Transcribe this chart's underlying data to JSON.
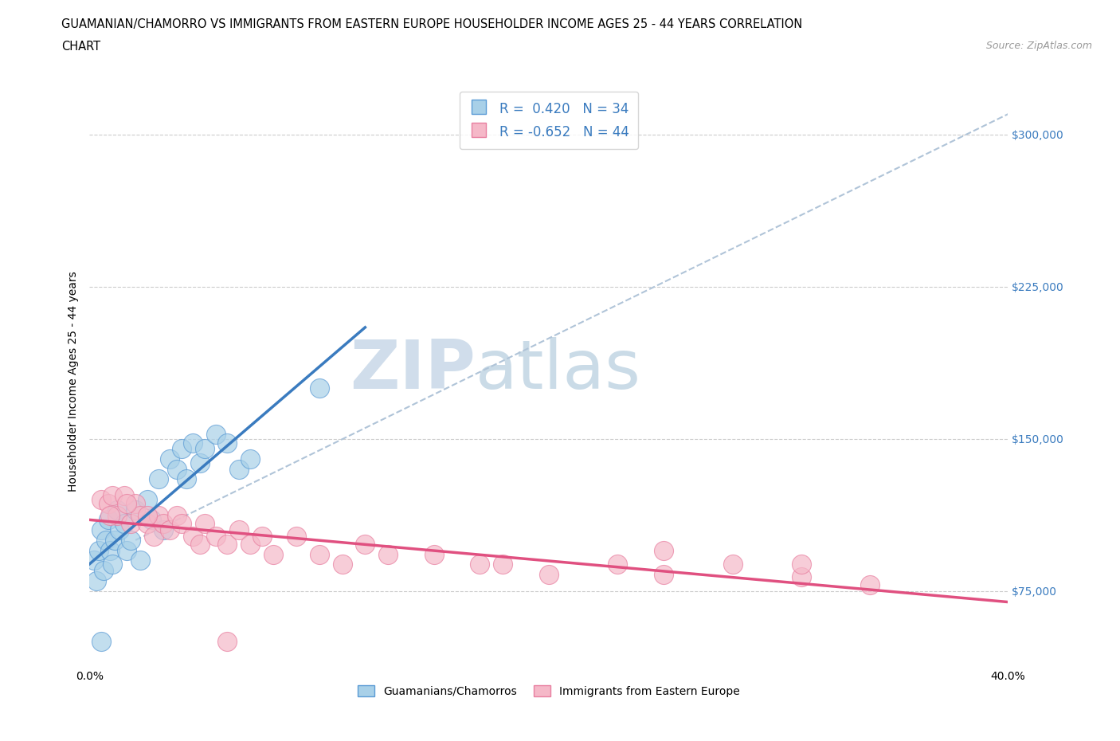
{
  "title_line1": "GUAMANIAN/CHAMORRO VS IMMIGRANTS FROM EASTERN EUROPE HOUSEHOLDER INCOME AGES 25 - 44 YEARS CORRELATION",
  "title_line2": "CHART",
  "source_text": "Source: ZipAtlas.com",
  "ylabel": "Householder Income Ages 25 - 44 years",
  "xlim": [
    0.0,
    0.4
  ],
  "ylim": [
    37500,
    318750
  ],
  "xticks": [
    0.0,
    0.05,
    0.1,
    0.15,
    0.2,
    0.25,
    0.3,
    0.35,
    0.4
  ],
  "xtick_labels": [
    "0.0%",
    "",
    "",
    "",
    "",
    "",
    "",
    "",
    "40.0%"
  ],
  "yticks": [
    75000,
    150000,
    225000,
    300000
  ],
  "ytick_labels": [
    "$75,000",
    "$150,000",
    "$225,000",
    "$300,000"
  ],
  "watermark_zip": "ZIP",
  "watermark_atlas": "atlas",
  "color_blue": "#a8d0e8",
  "color_blue_edge": "#5b9bd5",
  "color_blue_line": "#3a7bbf",
  "color_pink": "#f5b8c8",
  "color_pink_edge": "#e87fa0",
  "color_pink_line": "#e05080",
  "color_dashed": "#b0c4d8",
  "guam_x": [
    0.002,
    0.003,
    0.004,
    0.005,
    0.006,
    0.007,
    0.008,
    0.009,
    0.01,
    0.011,
    0.012,
    0.013,
    0.015,
    0.016,
    0.018,
    0.02,
    0.022,
    0.025,
    0.027,
    0.03,
    0.032,
    0.035,
    0.038,
    0.04,
    0.042,
    0.045,
    0.048,
    0.05,
    0.055,
    0.06,
    0.065,
    0.07,
    0.1,
    0.005
  ],
  "guam_y": [
    90000,
    80000,
    95000,
    105000,
    85000,
    100000,
    110000,
    95000,
    88000,
    100000,
    115000,
    105000,
    108000,
    95000,
    100000,
    115000,
    90000,
    120000,
    110000,
    130000,
    105000,
    140000,
    135000,
    145000,
    130000,
    148000,
    138000,
    145000,
    152000,
    148000,
    135000,
    140000,
    175000,
    50000
  ],
  "eastern_x": [
    0.005,
    0.008,
    0.01,
    0.012,
    0.015,
    0.018,
    0.02,
    0.022,
    0.025,
    0.028,
    0.03,
    0.032,
    0.035,
    0.038,
    0.04,
    0.045,
    0.048,
    0.05,
    0.055,
    0.06,
    0.065,
    0.07,
    0.075,
    0.08,
    0.09,
    0.1,
    0.11,
    0.12,
    0.13,
    0.15,
    0.17,
    0.2,
    0.23,
    0.25,
    0.28,
    0.31,
    0.34,
    0.009,
    0.016,
    0.025,
    0.06,
    0.18,
    0.31,
    0.25
  ],
  "eastern_y": [
    120000,
    118000,
    122000,
    112000,
    122000,
    108000,
    118000,
    112000,
    108000,
    102000,
    112000,
    108000,
    105000,
    112000,
    108000,
    102000,
    98000,
    108000,
    102000,
    98000,
    105000,
    98000,
    102000,
    93000,
    102000,
    93000,
    88000,
    98000,
    93000,
    93000,
    88000,
    83000,
    88000,
    83000,
    88000,
    82000,
    78000,
    112000,
    118000,
    112000,
    50000,
    88000,
    88000,
    95000
  ]
}
